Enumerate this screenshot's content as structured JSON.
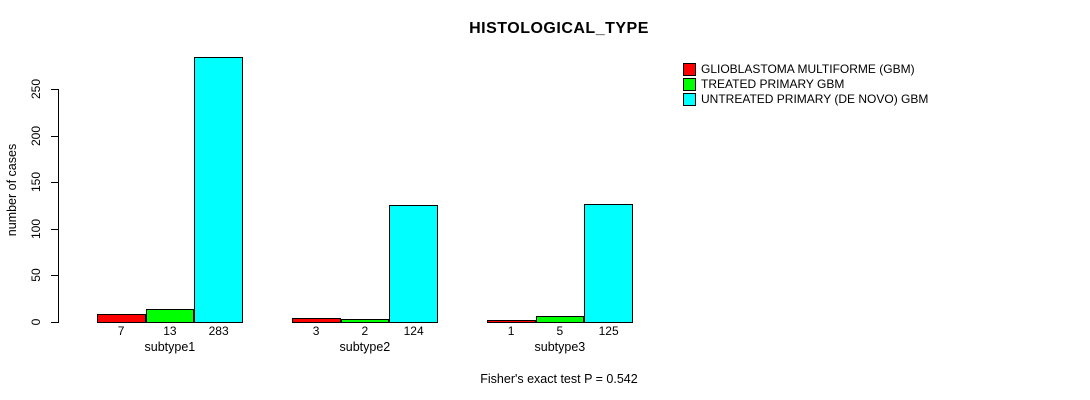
{
  "title": "HISTOLOGICAL_TYPE",
  "chart_data": {
    "type": "bar",
    "title": "HISTOLOGICAL_TYPE",
    "ylabel": "number of cases",
    "xlabel": "",
    "categories": [
      "subtype1",
      "subtype2",
      "subtype3"
    ],
    "series": [
      {
        "name": "GLIOBLASTOMA MULTIFORME (GBM)",
        "color": "#ff0000",
        "values": [
          7,
          3,
          1
        ]
      },
      {
        "name": "TREATED PRIMARY GBM",
        "color": "#00ff00",
        "values": [
          13,
          2,
          5
        ]
      },
      {
        "name": "UNTREATED PRIMARY (DE NOVO) GBM",
        "color": "#00ffff",
        "values": [
          283,
          124,
          125
        ]
      }
    ],
    "bar_value_labels": [
      [
        "7",
        "13",
        "283"
      ],
      [
        "3",
        "2",
        "124"
      ],
      [
        "1",
        "5",
        "125"
      ]
    ],
    "yticks": [
      0,
      50,
      100,
      150,
      200,
      250
    ],
    "ylim": [
      0,
      283
    ],
    "grid": false,
    "legend_position": "top-right",
    "annotation": "Fisher's exact test P = 0.542"
  }
}
